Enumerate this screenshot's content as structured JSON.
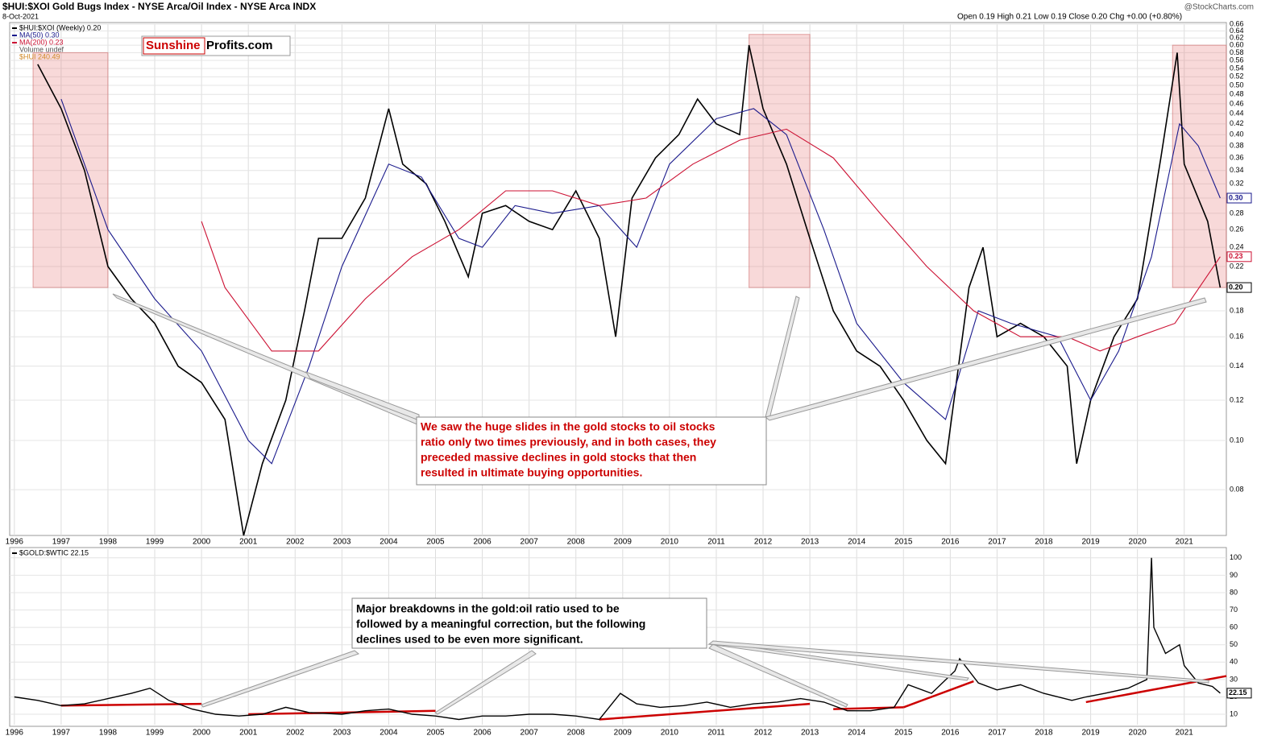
{
  "header": {
    "title": "$HUI:$XOI Gold Bugs Index - NYSE Arca/Oil Index - NYSE Arca INDX",
    "date": "8-Oct-2021",
    "quote": "Open 0.19  High 0.21  Low 0.19  Close 0.20  Chg +0.00 (+0.80%)",
    "source": "@StockCharts.com",
    "logo_a": "Sunshine",
    "logo_b": "Profits.com"
  },
  "chart_data": [
    {
      "type": "line",
      "log_scale": true,
      "grid": true,
      "xlim": [
        1995.9,
        2021.9
      ],
      "xticks": [
        1996,
        1997,
        1998,
        1999,
        2000,
        2001,
        2002,
        2003,
        2004,
        2005,
        2006,
        2007,
        2008,
        2009,
        2010,
        2011,
        2012,
        2013,
        2014,
        2015,
        2016,
        2017,
        2018,
        2019,
        2020,
        2021
      ],
      "ylim": [
        0.065,
        0.66
      ],
      "yticks": [
        0.08,
        {
          "value": 0.1,
          "label": "0.10"
        },
        0.12,
        0.14,
        0.16,
        0.18,
        {
          "value": 0.2,
          "label": "0.20"
        },
        0.22,
        0.24,
        0.26,
        0.28,
        {
          "value": 0.3,
          "label": "0.30"
        },
        0.32,
        0.34,
        0.36,
        0.38,
        {
          "value": 0.4,
          "label": "0.40"
        },
        0.42,
        0.44,
        0.46,
        0.48,
        {
          "value": 0.5,
          "label": "0.50"
        },
        0.52,
        0.54,
        0.56,
        0.58,
        {
          "value": 0.6,
          "label": "0.60"
        },
        0.62,
        0.64,
        0.66
      ],
      "legend_extra": [
        "Volume undef",
        "$HUI 240.49"
      ],
      "highlights": [
        {
          "x": [
            1996.4,
            1998.0
          ],
          "y": [
            0.2,
            0.58
          ]
        },
        {
          "x": [
            2011.7,
            2013.0
          ],
          "y": [
            0.2,
            0.63
          ]
        },
        {
          "x": [
            2020.75,
            2021.9
          ],
          "y": [
            0.2,
            0.6
          ]
        }
      ],
      "annotation": [
        "We saw the huge slides in the gold stocks to oil stocks",
        "ratio only two times previously, and in both cases, they",
        "preceded massive declines in gold stocks that then",
        "resulted in ultimate buying opportunities."
      ],
      "series": [
        {
          "name": "$HUI:$XOI (Weekly) 0.20",
          "color": "#000000",
          "width": 1.6,
          "last_label": "0.20",
          "x": [
            1996.5,
            1997.0,
            1997.5,
            1998.0,
            1998.5,
            1999.0,
            1999.5,
            2000.0,
            2000.5,
            2000.9,
            2001.3,
            2001.8,
            2002.2,
            2002.5,
            2003.0,
            2003.5,
            2004.0,
            2004.3,
            2004.8,
            2005.2,
            2005.7,
            2006.0,
            2006.5,
            2007.0,
            2007.5,
            2008.0,
            2008.5,
            2008.85,
            2009.2,
            2009.7,
            2010.2,
            2010.6,
            2011.0,
            2011.5,
            2011.7,
            2012.0,
            2012.5,
            2013.0,
            2013.5,
            2014.0,
            2014.5,
            2015.0,
            2015.5,
            2015.9,
            2016.4,
            2016.7,
            2017.0,
            2017.5,
            2018.0,
            2018.5,
            2018.7,
            2019.0,
            2019.5,
            2020.0,
            2020.5,
            2020.85,
            2021.0,
            2021.5,
            2021.77
          ],
          "values": [
            0.55,
            0.45,
            0.34,
            0.22,
            0.19,
            0.17,
            0.14,
            0.13,
            0.11,
            0.065,
            0.09,
            0.12,
            0.18,
            0.25,
            0.25,
            0.3,
            0.45,
            0.35,
            0.32,
            0.27,
            0.21,
            0.28,
            0.29,
            0.27,
            0.26,
            0.31,
            0.25,
            0.16,
            0.3,
            0.36,
            0.4,
            0.47,
            0.42,
            0.4,
            0.6,
            0.45,
            0.35,
            0.25,
            0.18,
            0.15,
            0.14,
            0.12,
            0.1,
            0.09,
            0.2,
            0.24,
            0.16,
            0.17,
            0.16,
            0.14,
            0.09,
            0.12,
            0.16,
            0.19,
            0.36,
            0.58,
            0.35,
            0.27,
            0.2
          ]
        },
        {
          "name": "MA(50) 0.30",
          "color": "#1a1a8c",
          "width": 1.1,
          "last_label": "0.30",
          "x": [
            1997.0,
            1998.0,
            1999.0,
            2000.0,
            2001.0,
            2001.5,
            2002.3,
            2003.0,
            2004.0,
            2004.7,
            2005.5,
            2006.0,
            2006.7,
            2007.5,
            2008.5,
            2009.3,
            2010.0,
            2011.0,
            2011.8,
            2012.5,
            2013.3,
            2014.0,
            2015.0,
            2015.9,
            2016.6,
            2017.3,
            2018.3,
            2019.0,
            2019.6,
            2020.3,
            2020.9,
            2021.3,
            2021.77
          ],
          "values": [
            0.47,
            0.26,
            0.19,
            0.15,
            0.1,
            0.09,
            0.14,
            0.22,
            0.35,
            0.33,
            0.25,
            0.24,
            0.29,
            0.28,
            0.29,
            0.24,
            0.35,
            0.43,
            0.45,
            0.4,
            0.26,
            0.17,
            0.13,
            0.11,
            0.18,
            0.17,
            0.16,
            0.12,
            0.15,
            0.23,
            0.42,
            0.38,
            0.3
          ]
        },
        {
          "name": "MA(200) 0.23",
          "color": "#cc1133",
          "width": 1.1,
          "last_label": "0.23",
          "x": [
            2000.0,
            2000.5,
            2001.5,
            2002.5,
            2003.5,
            2004.5,
            2005.5,
            2006.5,
            2007.5,
            2008.5,
            2009.5,
            2010.5,
            2011.5,
            2012.5,
            2013.5,
            2014.5,
            2015.5,
            2016.5,
            2017.5,
            2018.5,
            2019.2,
            2020.0,
            2020.8,
            2021.77
          ],
          "values": [
            0.27,
            0.2,
            0.15,
            0.15,
            0.19,
            0.23,
            0.26,
            0.31,
            0.31,
            0.29,
            0.3,
            0.35,
            0.39,
            0.41,
            0.36,
            0.28,
            0.22,
            0.18,
            0.16,
            0.16,
            0.15,
            0.16,
            0.17,
            0.23
          ]
        }
      ]
    },
    {
      "type": "line",
      "grid": true,
      "xlim": [
        1995.9,
        2021.9
      ],
      "xticks": [
        1996,
        1997,
        1998,
        1999,
        2000,
        2001,
        2002,
        2003,
        2004,
        2005,
        2006,
        2007,
        2008,
        2009,
        2010,
        2011,
        2012,
        2013,
        2014,
        2015,
        2016,
        2017,
        2018,
        2019,
        2020,
        2021
      ],
      "ylim": [
        4,
        105
      ],
      "yticks": [
        10,
        20,
        30,
        40,
        50,
        60,
        70,
        80,
        90,
        100
      ],
      "annotation": [
        "Major breakdowns in the gold:oil ratio used to be",
        "followed by a meaningful correction, but the following",
        "declines used to be even more significant."
      ],
      "trendlines": [
        [
          1997.0,
          15,
          2000.0,
          16
        ],
        [
          2001.0,
          10,
          2005.0,
          12
        ],
        [
          2008.5,
          7,
          2013.0,
          16
        ],
        [
          2013.5,
          13,
          2015.0,
          14
        ],
        [
          2015.0,
          14,
          2016.5,
          29
        ],
        [
          2018.9,
          17,
          2021.9,
          32
        ]
      ],
      "series": [
        {
          "name": "$GOLD:$WTIC 22.15",
          "color": "#000000",
          "width": 1.4,
          "last_label": "22.15",
          "x": [
            1996.0,
            1996.5,
            1997.0,
            1997.5,
            1998.0,
            1998.5,
            1998.9,
            1999.3,
            1999.8,
            2000.3,
            2000.8,
            2001.3,
            2001.8,
            2002.3,
            2003.0,
            2003.5,
            2004.0,
            2004.5,
            2005.0,
            2005.5,
            2006.0,
            2006.5,
            2007.0,
            2007.5,
            2008.0,
            2008.5,
            2008.95,
            2009.3,
            2009.8,
            2010.3,
            2010.8,
            2011.3,
            2011.8,
            2012.3,
            2012.8,
            2013.3,
            2013.8,
            2014.3,
            2014.8,
            2015.1,
            2015.6,
            2016.1,
            2016.2,
            2016.6,
            2017.0,
            2017.5,
            2018.0,
            2018.6,
            2018.9,
            2019.3,
            2019.8,
            2020.2,
            2020.3,
            2020.35,
            2020.6,
            2020.9,
            2021.0,
            2021.3,
            2021.6,
            2021.77
          ],
          "values": [
            20,
            18,
            15,
            16,
            19,
            22,
            25,
            18,
            13,
            10,
            9,
            10,
            14,
            11,
            10,
            12,
            13,
            10,
            9,
            7,
            9,
            9,
            10,
            10,
            9,
            7,
            22,
            16,
            14,
            15,
            17,
            14,
            16,
            17,
            19,
            17,
            12,
            12,
            14,
            27,
            22,
            35,
            42,
            28,
            24,
            27,
            22,
            18,
            20,
            22,
            25,
            30,
            100,
            60,
            45,
            50,
            38,
            28,
            26,
            22.15
          ]
        }
      ]
    }
  ]
}
